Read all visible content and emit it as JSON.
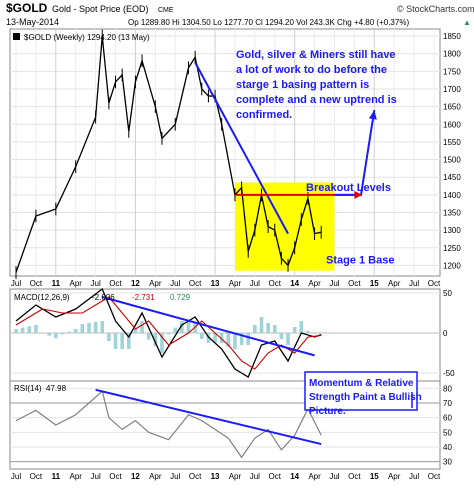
{
  "header": {
    "symbol": "$GOLD",
    "name": "Gold - Spot Price (EOD)",
    "exchange": "CME",
    "site": "© StockCharts.com",
    "date": "13-May-2014",
    "stats_line": "Op 1289.80  Hi 1304.50  Lo 1277.70  Cl 1294.20  Vol 243.3K  Chg +4.80 (+0.37%)",
    "arrow_glyph": "▲"
  },
  "chart_data": [
    {
      "type": "line",
      "title": "$GOLD (Weekly) 1294.20 (13 May)",
      "legend_swatch_color": "#000000",
      "x_ticks": [
        "Jul",
        "Oct",
        "11",
        "Apr",
        "Jul",
        "Oct",
        "12",
        "Apr",
        "Jul",
        "Oct",
        "13",
        "Apr",
        "Jul",
        "Oct",
        "14",
        "Apr",
        "Jul",
        "Oct",
        "15",
        "Apr",
        "Jul",
        "Oct"
      ],
      "x_range": [
        "2010-07",
        "2015-10"
      ],
      "y_ticks": [
        1200,
        1250,
        1300,
        1350,
        1400,
        1450,
        1500,
        1550,
        1600,
        1650,
        1700,
        1750,
        1800,
        1850
      ],
      "ylim": [
        1170,
        1870
      ],
      "y_axis_side": "right",
      "grid": true,
      "series": [
        {
          "color": "#000000",
          "x": [
            "2010-07",
            "2010-10",
            "2011-01",
            "2011-04",
            "2011-07",
            "2011-08",
            "2011-09",
            "2011-10",
            "2011-11",
            "2011-12",
            "2012-01",
            "2012-02",
            "2012-04",
            "2012-05",
            "2012-07",
            "2012-09",
            "2012-10",
            "2012-11",
            "2012-12",
            "2013-01",
            "2013-02",
            "2013-04",
            "2013-05",
            "2013-06",
            "2013-07",
            "2013-08",
            "2013-09",
            "2013-10",
            "2013-11",
            "2013-12",
            "2014-01",
            "2014-02",
            "2014-03",
            "2014-04",
            "2014-05"
          ],
          "y": [
            1180,
            1340,
            1360,
            1480,
            1620,
            1850,
            1660,
            1720,
            1740,
            1580,
            1720,
            1780,
            1650,
            1560,
            1600,
            1760,
            1790,
            1700,
            1680,
            1680,
            1600,
            1400,
            1420,
            1240,
            1300,
            1400,
            1310,
            1300,
            1220,
            1200,
            1250,
            1330,
            1390,
            1290,
            1294
          ]
        }
      ],
      "annotations": {
        "main_note": "Gold, silver & Miners still have a lot of work to do before the starge 1 basing pattern is complete and a new uptrend is confirmed.",
        "breakout_label": "Breakout Levels",
        "base_label": "Stage 1 Base",
        "base_zone_y": [
          1185,
          1435
        ],
        "base_zone_x": [
          "2013-04",
          "2014-07"
        ],
        "base_zone_color": "#ffff00",
        "breakout_level": 1400,
        "trendline": {
          "x": [
            "2012-10",
            "2013-12"
          ],
          "y": [
            1775,
            1290
          ]
        },
        "projection": {
          "x": [
            "2014-07",
            "2014-10",
            "2014-11",
            "2015-01"
          ],
          "y": [
            1400,
            1400,
            1400,
            1640
          ]
        },
        "accent_color": "#1a1aff",
        "breakout_color": "#e00000"
      }
    },
    {
      "type": "line",
      "title": "MACD(12,26,9)",
      "values_text": [
        "-2.006",
        "-2.731",
        "0.729"
      ],
      "value_colors": [
        "#000000",
        "#cc0000",
        "#2e8b57"
      ],
      "ylim": [
        -60,
        55
      ],
      "y_ticks": [
        -50,
        0,
        50
      ],
      "y_axis_side": "right",
      "series": [
        {
          "name": "MACD",
          "color": "#000000",
          "x": [
            "2010-07",
            "2010-10",
            "2011-01",
            "2011-04",
            "2011-08",
            "2011-10",
            "2011-12",
            "2012-02",
            "2012-05",
            "2012-08",
            "2012-10",
            "2012-12",
            "2013-02",
            "2013-04",
            "2013-06",
            "2013-08",
            "2013-10",
            "2013-12",
            "2014-02",
            "2014-04",
            "2014-05"
          ],
          "y": [
            15,
            35,
            20,
            30,
            55,
            15,
            -5,
            25,
            -30,
            10,
            20,
            -5,
            -20,
            -45,
            -55,
            -15,
            -10,
            -35,
            0,
            -5,
            -2
          ]
        },
        {
          "name": "Signal",
          "color": "#cc0000",
          "x": [
            "2010-07",
            "2010-11",
            "2011-02",
            "2011-05",
            "2011-09",
            "2011-11",
            "2012-01",
            "2012-03",
            "2012-06",
            "2012-09",
            "2012-11",
            "2013-01",
            "2013-03",
            "2013-05",
            "2013-07",
            "2013-09",
            "2013-11",
            "2014-01",
            "2014-03",
            "2014-05"
          ],
          "y": [
            10,
            30,
            25,
            25,
            45,
            25,
            5,
            15,
            -15,
            0,
            15,
            0,
            -15,
            -35,
            -45,
            -25,
            -15,
            -25,
            -5,
            -3
          ]
        }
      ],
      "histogram_color": "#9fd3d8",
      "divergence_line": {
        "x": [
          "2011-08",
          "2014-04"
        ],
        "y": [
          45,
          -28
        ]
      }
    },
    {
      "type": "line",
      "title": "RSI(14)",
      "value_text": "47.98",
      "ylim": [
        25,
        85
      ],
      "y_ticks": [
        30,
        40,
        50,
        60,
        70,
        80
      ],
      "reference_lines": [
        30,
        70
      ],
      "y_axis_side": "right",
      "series": [
        {
          "color": "#808080",
          "x": [
            "2010-07",
            "2010-10",
            "2011-01",
            "2011-04",
            "2011-08",
            "2011-09",
            "2011-11",
            "2012-01",
            "2012-03",
            "2012-06",
            "2012-09",
            "2012-11",
            "2013-01",
            "2013-03",
            "2013-05",
            "2013-07",
            "2013-09",
            "2013-11",
            "2014-01",
            "2014-03",
            "2014-05"
          ],
          "y": [
            58,
            65,
            55,
            62,
            78,
            60,
            52,
            58,
            50,
            45,
            62,
            58,
            52,
            46,
            33,
            46,
            52,
            38,
            48,
            66,
            48
          ]
        }
      ],
      "trendline": {
        "x": [
          "2011-07",
          "2014-05"
        ],
        "y": [
          79,
          42
        ]
      },
      "note": "Momentum & Relative Strength Paint a Bullish Picture."
    }
  ]
}
